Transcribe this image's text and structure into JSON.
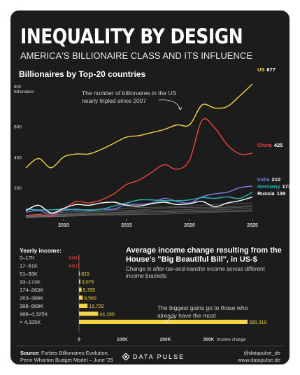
{
  "header": {
    "title": "INEQUALITY BY DESIGN",
    "subtitle": "AMERICA'S BILLIONAIRE CLASS AND ITS INFLUENCE"
  },
  "colors": {
    "us": "#f5d547",
    "china": "#e8453c",
    "india": "#7b7be6",
    "germany": "#2bb8b8",
    "russia": "#ffffff",
    "other": "#8a8a8a",
    "negative": "#e8453c",
    "positive": "#f5d547"
  },
  "chart_data": [
    {
      "type": "line",
      "title": "Billionaires by Top-20 countries",
      "ylabel": "billionaires",
      "ylim": [
        0,
        900
      ],
      "y_ticks": [
        "200",
        "400",
        "600",
        "800"
      ],
      "x_ticks": [
        "2010",
        "2015",
        "2020",
        "2025"
      ],
      "annotation": "The number of billionaires in the US nearly tripled since 2007",
      "series": [
        {
          "name": "US",
          "end_label": "877",
          "x": [
            2007,
            2008,
            2009,
            2010,
            2011,
            2012,
            2013,
            2014,
            2015,
            2016,
            2017,
            2018,
            2019,
            2020,
            2021,
            2022,
            2023,
            2024,
            2025
          ],
          "values": [
            330,
            390,
            330,
            400,
            420,
            420,
            450,
            490,
            530,
            540,
            560,
            580,
            610,
            610,
            740,
            720,
            730,
            800,
            877
          ]
        },
        {
          "name": "China",
          "end_label": "425",
          "x": [
            2007,
            2008,
            2009,
            2010,
            2011,
            2012,
            2013,
            2014,
            2015,
            2016,
            2017,
            2018,
            2019,
            2020,
            2021,
            2022,
            2023,
            2024,
            2025
          ],
          "values": [
            15,
            25,
            15,
            60,
            110,
            100,
            120,
            160,
            220,
            250,
            300,
            350,
            320,
            380,
            640,
            590,
            480,
            420,
            425
          ]
        },
        {
          "name": "India",
          "end_label": "210",
          "x": [
            2007,
            2008,
            2009,
            2010,
            2011,
            2012,
            2013,
            2014,
            2015,
            2016,
            2017,
            2018,
            2019,
            2020,
            2021,
            2022,
            2023,
            2024,
            2025
          ],
          "values": [
            40,
            50,
            30,
            50,
            60,
            50,
            60,
            60,
            90,
            90,
            100,
            130,
            110,
            100,
            140,
            160,
            170,
            200,
            210
          ]
        },
        {
          "name": "Germany",
          "end_label": "171",
          "x": [
            2007,
            2008,
            2009,
            2010,
            2011,
            2012,
            2013,
            2014,
            2015,
            2016,
            2017,
            2018,
            2019,
            2020,
            2021,
            2022,
            2023,
            2024,
            2025
          ],
          "values": [
            60,
            55,
            55,
            60,
            55,
            55,
            60,
            80,
            100,
            120,
            120,
            115,
            115,
            120,
            135,
            130,
            140,
            130,
            171
          ]
        },
        {
          "name": "Russia",
          "end_label": "139",
          "x": [
            2007,
            2008,
            2009,
            2010,
            2011,
            2012,
            2013,
            2014,
            2015,
            2016,
            2017,
            2018,
            2019,
            2020,
            2021,
            2022,
            2023,
            2024,
            2025
          ],
          "values": [
            50,
            85,
            35,
            65,
            90,
            85,
            100,
            105,
            85,
            80,
            95,
            105,
            90,
            95,
            110,
            75,
            100,
            115,
            139
          ]
        },
        {
          "name": "",
          "x": [
            2007,
            2010,
            2013,
            2016,
            2019,
            2022,
            2025
          ],
          "values": [
            20,
            40,
            50,
            70,
            75,
            90,
            100
          ]
        },
        {
          "name": "",
          "x": [
            2007,
            2010,
            2013,
            2016,
            2019,
            2022,
            2025
          ],
          "values": [
            15,
            30,
            45,
            55,
            70,
            70,
            85
          ]
        },
        {
          "name": "",
          "x": [
            2007,
            2010,
            2013,
            2016,
            2019,
            2022,
            2025
          ],
          "values": [
            10,
            25,
            35,
            45,
            55,
            65,
            75
          ]
        },
        {
          "name": "",
          "x": [
            2007,
            2010,
            2013,
            2016,
            2019,
            2022,
            2025
          ],
          "values": [
            8,
            20,
            30,
            40,
            45,
            55,
            65
          ]
        },
        {
          "name": "",
          "x": [
            2007,
            2010,
            2013,
            2016,
            2019,
            2022,
            2025
          ],
          "values": [
            5,
            15,
            25,
            30,
            40,
            45,
            55
          ]
        },
        {
          "name": "",
          "x": [
            2007,
            2010,
            2013,
            2016,
            2019,
            2022,
            2025
          ],
          "values": [
            5,
            12,
            20,
            25,
            30,
            40,
            45
          ]
        }
      ]
    },
    {
      "type": "bar",
      "title": "Average income change resulting from the House's \"Big Beautiful Bill\", in US-$",
      "subtitle": "Change in after-tax-and-transfer income across different income brackets",
      "category_header": "Yearly income:",
      "xlabel": "Income change",
      "xlim": [
        -5000,
        395000
      ],
      "x_ticks": [
        "0",
        "100K",
        "200K",
        "300K"
      ],
      "annotation": "The biggest gains go to those who already have the most",
      "categories": [
        "0–17K",
        "17–51K",
        "51–93K",
        "93–174K",
        "174–263K",
        "263–388K",
        "388–968K",
        "988–4,325K",
        "> 4,325K"
      ],
      "values": [
        -940,
        -580,
        815,
        3075,
        5795,
        8560,
        19720,
        44190,
        390310
      ],
      "value_labels": [
        "-940",
        "-580",
        "815",
        "3,075",
        "5,795",
        "8,560",
        "19,720",
        "44,190",
        "390,310"
      ]
    }
  ],
  "footer": {
    "source_label": "Source:",
    "source_line1": "Forbes Billionaires Evolution,",
    "source_line2": "Penn Wharton Budget Model – June '25",
    "brand": "DATA PULSE",
    "handle": "@datapulse_de",
    "website": "www.datapulse.de"
  }
}
